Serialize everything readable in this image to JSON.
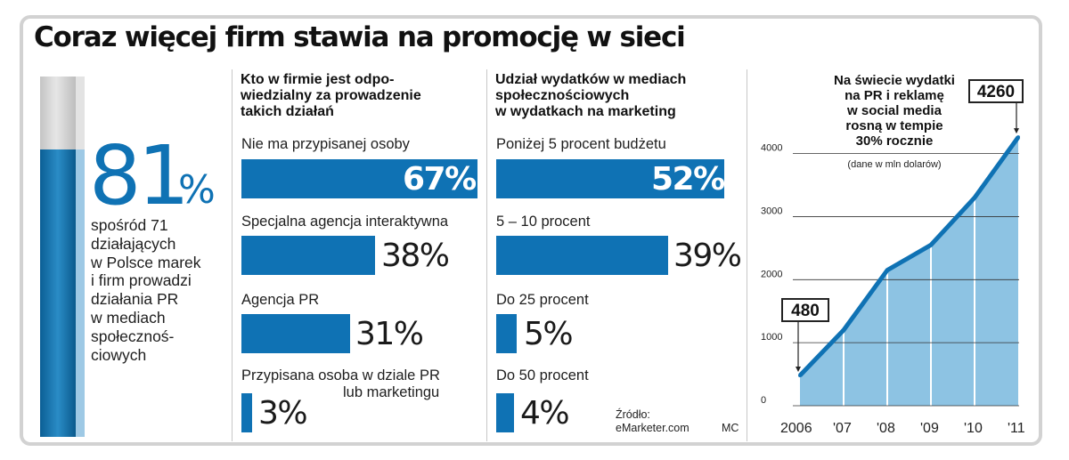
{
  "title": "Coraz więcej firm stawia na promocję w sieci",
  "intro": {
    "value": "81",
    "unit": "%",
    "description_lines": [
      "spośród 71",
      "działających",
      "w Polsce marek",
      "i firm prowadzi",
      "działania PR",
      "w mediach",
      "społecznoś-",
      "ciowych"
    ]
  },
  "responsibility": {
    "heading_lines": [
      "Kto w firmie jest odpo-",
      "wiedzialny za prowadzenie",
      "takich działań"
    ],
    "items": [
      {
        "label": "Nie ma przypisanej osoby",
        "value": 67,
        "display": "67%"
      },
      {
        "label": "Specjalna agencja interaktywna",
        "value": 38,
        "display": "38%"
      },
      {
        "label": "Agencja PR",
        "value": 31,
        "display": "31%"
      },
      {
        "label": "Przypisana osoba w dziale PR",
        "label_line2": "lub marketingu",
        "value": 3,
        "display": "3%"
      }
    ]
  },
  "share": {
    "heading_lines": [
      "Udział wydatków w mediach",
      "społecznościowych",
      "w wydatkach na marketing"
    ],
    "items": [
      {
        "label": "Poniżej 5 procent budżetu",
        "value": 52,
        "display": "52%"
      },
      {
        "label": "5 – 10 procent",
        "value": 39,
        "display": "39%"
      },
      {
        "label": "Do 25 procent",
        "value": 5,
        "display": "5%"
      },
      {
        "label": "Do 50 procent",
        "value": 4,
        "display": "4%"
      }
    ]
  },
  "source": {
    "line1": "Źródło:",
    "line2": "eMarketer.com",
    "credit": "MC"
  },
  "chart_data": {
    "type": "area",
    "title_lines": [
      "Na świecie wydatki",
      "na PR i reklamę",
      "w social media",
      "rosną w tempie",
      "30% rocznie"
    ],
    "subtitle": "(dane w mln dolarów)",
    "x": [
      "2006",
      "'07",
      "'08",
      "'09",
      "'10",
      "'11"
    ],
    "y": [
      480,
      1200,
      2150,
      2550,
      3300,
      4260
    ],
    "yticks": [
      0,
      1000,
      2000,
      3000,
      4000
    ],
    "ytick_labels": [
      "0",
      "1000",
      "2000",
      "3000",
      "4000"
    ],
    "ylim": [
      0,
      4700
    ],
    "grid": true,
    "callouts": [
      {
        "index": 0,
        "label": "480"
      },
      {
        "index": 5,
        "label": "4260"
      }
    ],
    "colors": {
      "fill": "#8dc3e3",
      "line": "#0f72b4"
    }
  }
}
